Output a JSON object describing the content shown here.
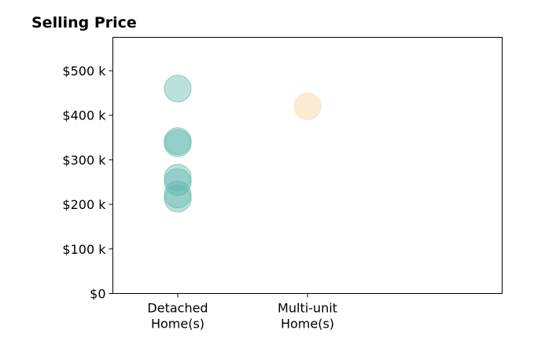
{
  "chart_data": {
    "type": "scatter",
    "title": "Selling Price",
    "xlabel": "",
    "ylabel": "",
    "categories": [
      [
        "Detached",
        "Home(s)"
      ],
      [
        "Multi-unit",
        "Home(s)"
      ]
    ],
    "xlim": [
      -0.5,
      2.5
    ],
    "ylim": [
      0,
      575000
    ],
    "y_ticks": [
      {
        "value": 0,
        "label": "$0"
      },
      {
        "value": 100000,
        "label": "$100 k"
      },
      {
        "value": 200000,
        "label": "$200 k"
      },
      {
        "value": 300000,
        "label": "$300 k"
      },
      {
        "value": 400000,
        "label": "$400 k"
      },
      {
        "value": 500000,
        "label": "$500 k"
      }
    ],
    "grid": false,
    "series": [
      {
        "color": "#5fb8ad",
        "points": [
          {
            "category": 0,
            "y": 460000
          },
          {
            "category": 0,
            "y": 342000
          },
          {
            "category": 0,
            "y": 337000
          },
          {
            "category": 0,
            "y": 260000
          },
          {
            "category": 0,
            "y": 250000
          },
          {
            "category": 0,
            "y": 222000
          },
          {
            "category": 0,
            "y": 213000
          }
        ]
      },
      {
        "color": "#f7deb3",
        "points": [
          {
            "category": 1,
            "y": 420000
          }
        ]
      }
    ]
  }
}
